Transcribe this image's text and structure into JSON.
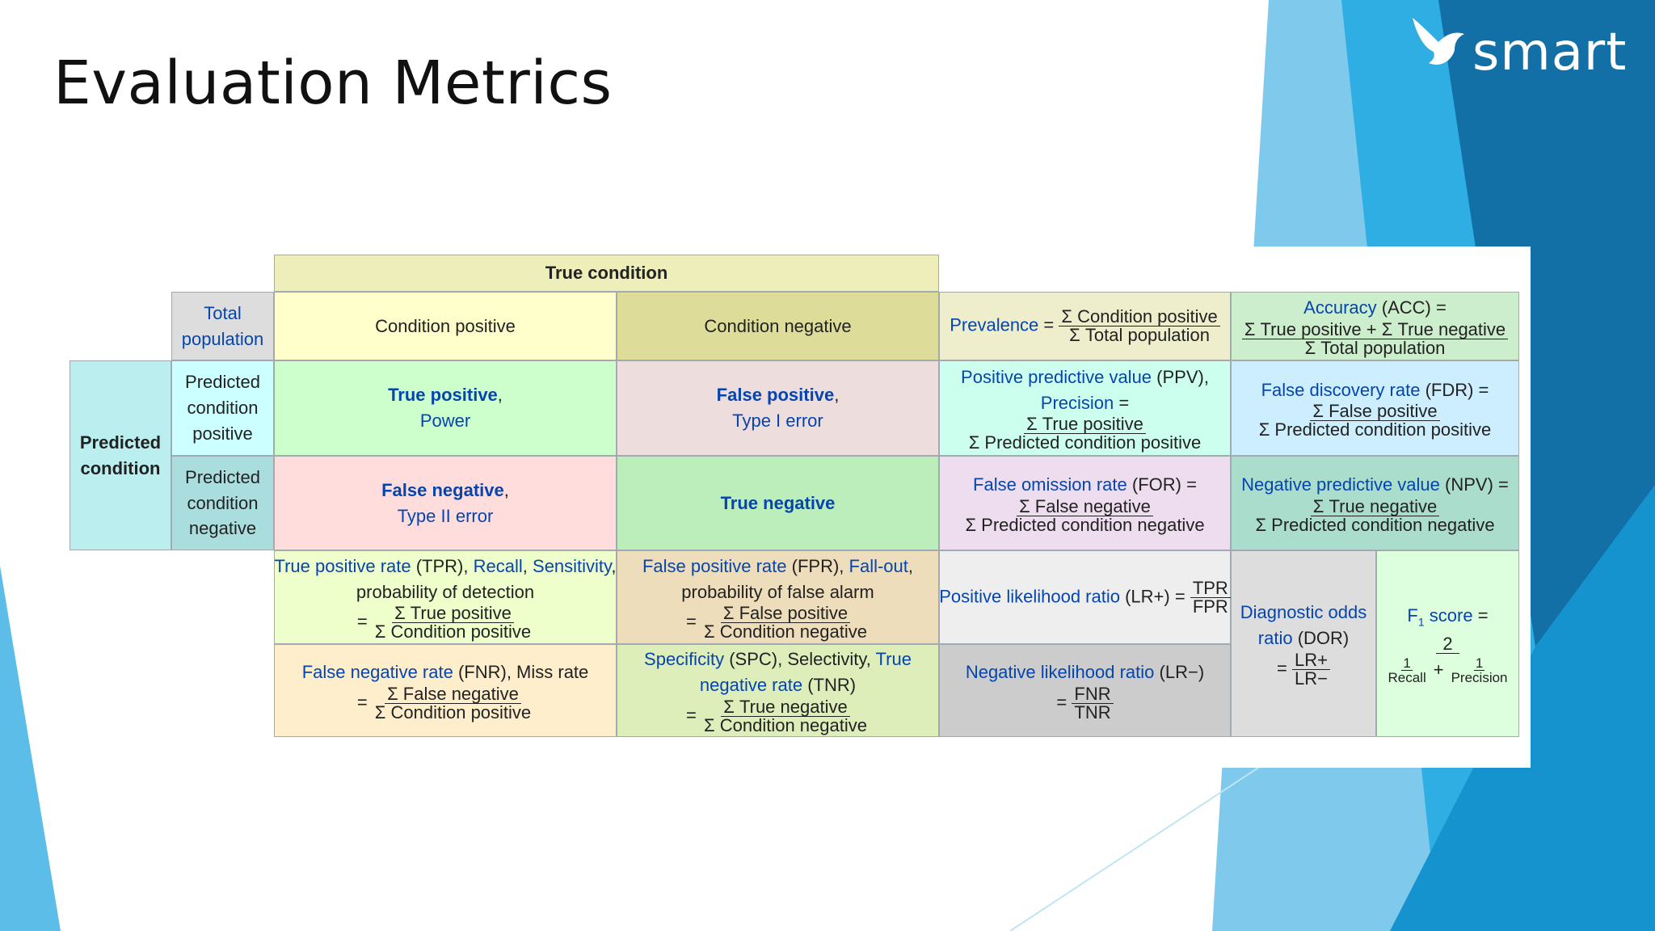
{
  "slide": {
    "title": "Evaluation Metrics",
    "logo_text": "smart"
  },
  "colors": {
    "accent_blue": "#1fa2dd",
    "accent_deep": "#1270a6",
    "link": "#0645ad",
    "border": "#a2a9b1"
  },
  "table": {
    "true_condition": "True condition",
    "total_population": {
      "l1": "Total",
      "l2": "population"
    },
    "condition_positive": "Condition positive",
    "condition_negative": "Condition negative",
    "prevalence": {
      "name": "Prevalence",
      "eq": "=",
      "num": "Σ Condition positive",
      "den": "Σ Total population"
    },
    "accuracy": {
      "name": "Accuracy",
      "abbr": "(ACC) =",
      "num": "Σ True positive + Σ True negative",
      "den": "Σ Total population"
    },
    "predicted_condition": {
      "l1": "Predicted",
      "l2": "condition"
    },
    "predicted_positive": {
      "l1": "Predicted",
      "l2": "condition",
      "l3": "positive"
    },
    "predicted_negative": {
      "l1": "Predicted",
      "l2": "condition",
      "l3": "negative"
    },
    "true_positive": {
      "name": "True positive",
      "comma": ",",
      "alt": "Power"
    },
    "false_positive": {
      "name": "False positive",
      "comma": ",",
      "alt": "Type I error"
    },
    "false_negative": {
      "name": "False negative",
      "comma": ",",
      "alt": "Type II error"
    },
    "true_negative": {
      "name": "True negative"
    },
    "ppv": {
      "name": "Positive predictive value",
      "abbr": "(PPV),",
      "alt": "Precision",
      "eq": "=",
      "num": "Σ True positive",
      "den": "Σ Predicted condition positive"
    },
    "fdr": {
      "name": "False discovery rate",
      "abbr": "(FDR) =",
      "num": "Σ False positive",
      "den": "Σ Predicted condition positive"
    },
    "for_rate": {
      "name": "False omission rate",
      "abbr": "(FOR) =",
      "num": "Σ False negative",
      "den": "Σ Predicted condition negative"
    },
    "npv": {
      "name": "Negative predictive value",
      "abbr": "(NPV) =",
      "num": "Σ True negative",
      "den": "Σ Predicted condition negative"
    },
    "tpr": {
      "name": "True positive rate",
      "abbr": "(TPR),",
      "alt1": "Recall",
      "sep": ",",
      "alt2": "Sensitivity",
      "tail": ",",
      "desc": "probability of detection",
      "eq": "=",
      "num": "Σ True positive",
      "den": "Σ Condition positive"
    },
    "fpr": {
      "name": "False positive rate",
      "abbr": "(FPR),",
      "alt1": "Fall-out",
      "tail": ",",
      "desc": "probability of false alarm",
      "eq": "=",
      "num": "Σ False positive",
      "den": "Σ Condition negative"
    },
    "lr_pos": {
      "name": "Positive likelihood ratio",
      "abbr": "(LR+) =",
      "num": "TPR",
      "den": "FPR"
    },
    "dor": {
      "l1": "Diagnostic odds",
      "l2": "ratio",
      "abbr": "(DOR)",
      "eq": "=",
      "num": "LR+",
      "den": "LR−"
    },
    "f1": {
      "name": "F",
      "sub": "1",
      "name2": "score",
      "eq": "=",
      "num": "2",
      "t1_num": "1",
      "t1_den": "Recall",
      "plus": "+",
      "t2_num": "1",
      "t2_den": "Precision"
    },
    "fnr": {
      "name": "False negative rate",
      "abbr": "(FNR), Miss rate",
      "eq": "=",
      "num": "Σ False negative",
      "den": "Σ Condition positive"
    },
    "spc": {
      "name": "Specificity",
      "abbr": "(SPC), Selectivity,",
      "alt": "True",
      "alt2": "negative rate",
      "abbr2": "(TNR)",
      "eq": "=",
      "num": "Σ True negative",
      "den": "Σ Condition negative"
    },
    "lr_neg": {
      "name": "Negative likelihood ratio",
      "abbr": "(LR−)",
      "eq": "=",
      "num": "FNR",
      "den": "TNR"
    }
  }
}
